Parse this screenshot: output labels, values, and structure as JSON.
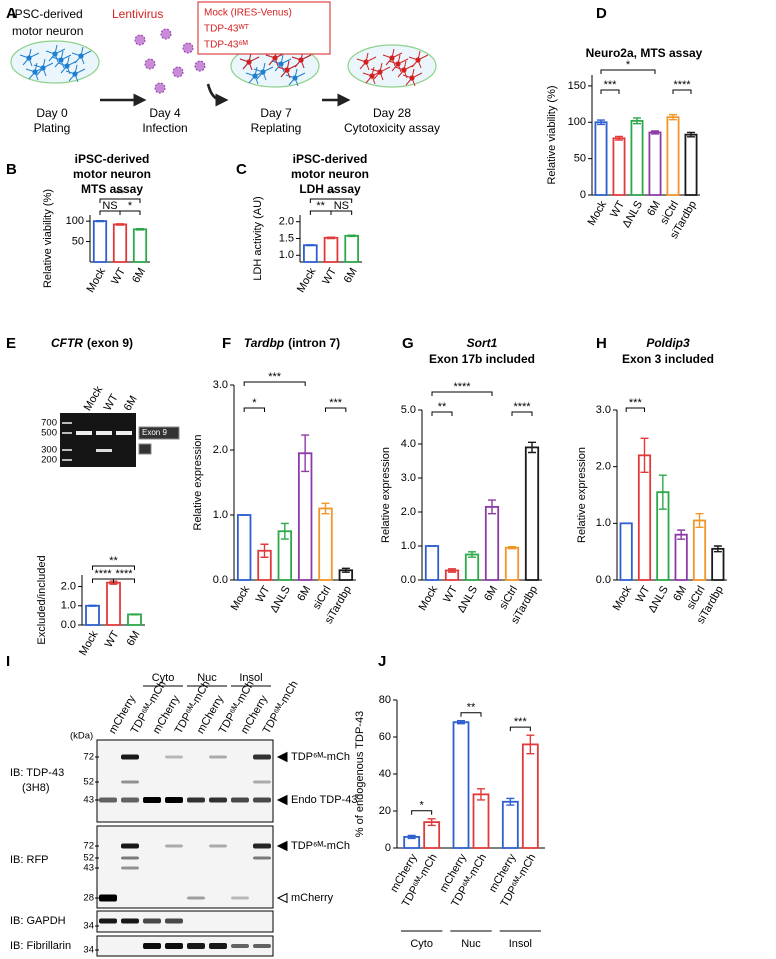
{
  "panel_labels": [
    "A",
    "B",
    "C",
    "D",
    "E",
    "F",
    "G",
    "H",
    "I",
    "J"
  ],
  "diagram": {
    "cells_label": [
      "iPSC-derived",
      "motor neuron"
    ],
    "vector": "Lentivirus",
    "constructs": [
      "Mock (IRES-Venus)",
      "TDP-43ᵂᵀ",
      "TDP-43⁶ᴹ"
    ],
    "steps": [
      {
        "day": "Day 0",
        "label": "Plating"
      },
      {
        "day": "Day 4",
        "label": "Infection"
      },
      {
        "day": "Day 7",
        "label": "Replating"
      },
      {
        "day": "Day 28",
        "label": "Cytotoxicity assay"
      }
    ]
  },
  "gel": {
    "lanes": [
      "Mock",
      "WT",
      "6M"
    ],
    "ladder": [
      "700",
      "500",
      "300",
      "200"
    ],
    "band_label": "Exon 9"
  },
  "blot": {
    "fractions": [
      "Cyto",
      "Nuc",
      "Insol"
    ],
    "kda_label": "(kDa)",
    "lanes": [
      "mCherry",
      "TDP⁶ᴹ-mCh",
      "mCherry",
      "TDP⁶ᴹ-mCh",
      "mCherry",
      "TDP⁶ᴹ-mCh",
      "mCherry",
      "TDP⁶ᴹ-mCh"
    ],
    "blots": [
      {
        "antibody": "IB: TDP-43",
        "clone": "(3H8)",
        "markers": [
          "72",
          "52",
          "43"
        ],
        "bands": [
          "TDP⁶ᴹ-mCh",
          "Endo TDP-43"
        ]
      },
      {
        "antibody": "IB: RFP",
        "markers": [
          "72",
          "52",
          "43",
          "28"
        ],
        "bands": [
          "TDP⁶ᴹ-mCh",
          "mCherry"
        ]
      },
      {
        "antibody": "IB: GAPDH",
        "markers": [
          "34"
        ]
      },
      {
        "antibody": "IB: Fibrillarin",
        "markers": [
          "34"
        ]
      }
    ]
  },
  "chart_data": [
    {
      "type": "bar",
      "title": [
        "iPSC-derived",
        "motor neuron",
        "MTS assay"
      ],
      "ylabel": "Relative viability (%)",
      "categories": [
        "Mock",
        "WT",
        "6M"
      ],
      "values": [
        100,
        92,
        80
      ],
      "errors": [
        1,
        1.5,
        1.5
      ],
      "colors": [
        "#2e5fd0",
        "#e23a3a",
        "#2ca84a"
      ],
      "ylim": [
        0,
        115
      ],
      "yticks": [
        50,
        100
      ],
      "significance": [
        {
          "from": "Mock",
          "to": "WT",
          "label": "NS"
        },
        {
          "from": "WT",
          "to": "6M",
          "label": "*"
        },
        {
          "from": "Mock",
          "to": "6M",
          "label": "**"
        }
      ]
    },
    {
      "type": "bar",
      "title": [
        "iPSC-derived",
        "motor neuron",
        "LDH assay"
      ],
      "ylabel": "LDH activity (AU)",
      "categories": [
        "Mock",
        "WT",
        "6M"
      ],
      "values": [
        1.3,
        1.52,
        1.58
      ],
      "errors": [
        0.01,
        0.02,
        0.02
      ],
      "colors": [
        "#2e5fd0",
        "#e23a3a",
        "#2ca84a"
      ],
      "ylim": [
        0.8,
        2.2
      ],
      "yticks": [
        {
          "value": 1,
          "label": "1.0"
        },
        {
          "value": 1.5,
          "label": "1.5"
        },
        {
          "value": 2,
          "label": "2.0"
        }
      ],
      "significance": [
        {
          "from": "Mock",
          "to": "WT",
          "label": "**"
        },
        {
          "from": "WT",
          "to": "6M",
          "label": "NS"
        },
        {
          "from": "Mock",
          "to": "6M",
          "label": "**"
        }
      ]
    },
    {
      "type": "bar",
      "title": [
        "Neuro2a, MTS assay"
      ],
      "ylabel": "Relative viability (%)",
      "categories": [
        "Mock",
        "WT",
        "ΔNLS",
        "6M",
        "siCtrl",
        "siTardbp"
      ],
      "values": [
        100,
        78,
        102,
        86,
        107,
        83
      ],
      "errors": [
        3,
        2.5,
        4,
        2,
        3.5,
        3
      ],
      "colors": [
        "#2e5fd0",
        "#e23a3a",
        "#2ca84a",
        "#8b3aa8",
        "#f0962a",
        "#1a1a1a"
      ],
      "ylim": [
        0,
        165
      ],
      "yticks": [
        0,
        50,
        100,
        150
      ],
      "significance": [
        {
          "from": "Mock",
          "to": "WT",
          "label": "***"
        },
        {
          "from": "Mock",
          "to": "6M",
          "label": "*"
        },
        {
          "from": "siCtrl",
          "to": "siTardbp",
          "label": "****"
        }
      ]
    },
    {
      "type": "bar",
      "gene": "CFTR",
      "title": "(exon 9)",
      "ylabel": "Excluded/included",
      "categories": [
        "Mock",
        "WT",
        "6M"
      ],
      "values": [
        1,
        2.2,
        0.55
      ],
      "errors": [
        0.02,
        0.08,
        0.02
      ],
      "colors": [
        "#2e5fd0",
        "#e23a3a",
        "#2ca84a"
      ],
      "ylim": [
        0,
        2.6
      ],
      "yticks": [
        {
          "value": 0,
          "label": "0.0"
        },
        {
          "value": 1,
          "label": "1.0"
        },
        {
          "value": 2,
          "label": "2.0"
        }
      ],
      "significance": [
        {
          "from": "Mock",
          "to": "WT",
          "label": "****"
        },
        {
          "from": "WT",
          "to": "6M",
          "label": "****"
        },
        {
          "from": "Mock",
          "to": "6M",
          "label": "**"
        }
      ]
    },
    {
      "type": "bar",
      "gene": "Tardbp",
      "title": "(intron 7)",
      "ylabel": "Relative expression",
      "categories": [
        "Mock",
        "WT",
        "ΔNLS",
        "6M",
        "siCtrl",
        "siTardbp"
      ],
      "values": [
        1,
        0.45,
        0.75,
        1.95,
        1.1,
        0.15
      ],
      "errors": [
        0,
        0.1,
        0.12,
        0.28,
        0.08,
        0.03
      ],
      "colors": [
        "#2e5fd0",
        "#e23a3a",
        "#2ca84a",
        "#8b3aa8",
        "#f0962a",
        "#1a1a1a"
      ],
      "ylim": [
        0,
        3
      ],
      "yticks": [
        {
          "value": 0,
          "label": "0.0"
        },
        {
          "value": 1,
          "label": "1.0"
        },
        {
          "value": 2,
          "label": "2.0"
        },
        {
          "value": 3,
          "label": "3.0"
        }
      ],
      "significance": [
        {
          "from": "Mock",
          "to": "WT",
          "label": "*"
        },
        {
          "from": "Mock",
          "to": "6M",
          "label": "***"
        },
        {
          "from": "siCtrl",
          "to": "siTardbp",
          "label": "***"
        }
      ]
    },
    {
      "type": "bar",
      "gene": "Sort1",
      "subtitle": "Exon 17b included",
      "ylabel": "Relative expression",
      "categories": [
        "Mock",
        "WT",
        "ΔNLS",
        "6M",
        "siCtrl",
        "siTardbp"
      ],
      "values": [
        1,
        0.28,
        0.75,
        2.15,
        0.95,
        3.9
      ],
      "errors": [
        0,
        0.05,
        0.08,
        0.2,
        0.03,
        0.15
      ],
      "colors": [
        "#2e5fd0",
        "#e23a3a",
        "#2ca84a",
        "#8b3aa8",
        "#f0962a",
        "#1a1a1a"
      ],
      "ylim": [
        0,
        5
      ],
      "yticks": [
        {
          "value": 0,
          "label": "0.0"
        },
        {
          "value": 1,
          "label": "1.0"
        },
        {
          "value": 2,
          "label": "2.0"
        },
        {
          "value": 3,
          "label": "3.0"
        },
        {
          "value": 4,
          "label": "4.0"
        },
        {
          "value": 5,
          "label": "5.0"
        }
      ],
      "significance": [
        {
          "from": "Mock",
          "to": "WT",
          "label": "**"
        },
        {
          "from": "Mock",
          "to": "6M",
          "label": "****"
        },
        {
          "from": "siCtrl",
          "to": "siTardbp",
          "label": "****"
        }
      ]
    },
    {
      "type": "bar",
      "gene": "Poldip3",
      "subtitle": "Exon 3 included",
      "ylabel": "Relative expression",
      "categories": [
        "Mock",
        "WT",
        "ΔNLS",
        "6M",
        "siCtrl",
        "siTardbp"
      ],
      "values": [
        1,
        2.2,
        1.55,
        0.8,
        1.05,
        0.55
      ],
      "errors": [
        0,
        0.3,
        0.3,
        0.08,
        0.12,
        0.05
      ],
      "colors": [
        "#2e5fd0",
        "#e23a3a",
        "#2ca84a",
        "#8b3aa8",
        "#f0962a",
        "#1a1a1a"
      ],
      "ylim": [
        0,
        3
      ],
      "yticks": [
        {
          "value": 0,
          "label": "0.0"
        },
        {
          "value": 1,
          "label": "1.0"
        },
        {
          "value": 2,
          "label": "2.0"
        },
        {
          "value": 3,
          "label": "3.0"
        }
      ],
      "significance": [
        {
          "from": "Mock",
          "to": "WT",
          "label": "***"
        }
      ]
    },
    {
      "type": "grouped_bar",
      "ylabel": "% of endogenous TDP-43",
      "groups": [
        "Cyto",
        "Nuc",
        "Insol"
      ],
      "series": [
        {
          "name": "mCherry",
          "color": "#2e5fd0",
          "values": [
            6,
            68,
            25
          ],
          "errors": [
            0.8,
            0.8,
            1.8
          ]
        },
        {
          "name": "TDP⁶ᴹ-mCh",
          "color": "#e23a3a",
          "values": [
            14,
            29,
            56
          ],
          "errors": [
            1.8,
            3,
            5
          ]
        }
      ],
      "ylim": [
        0,
        80
      ],
      "yticks": [
        0,
        20,
        40,
        60,
        80
      ],
      "significance": [
        {
          "group": "Cyto",
          "label": "*"
        },
        {
          "group": "Nuc",
          "label": "**"
        },
        {
          "group": "Insol",
          "label": "***"
        }
      ]
    }
  ]
}
